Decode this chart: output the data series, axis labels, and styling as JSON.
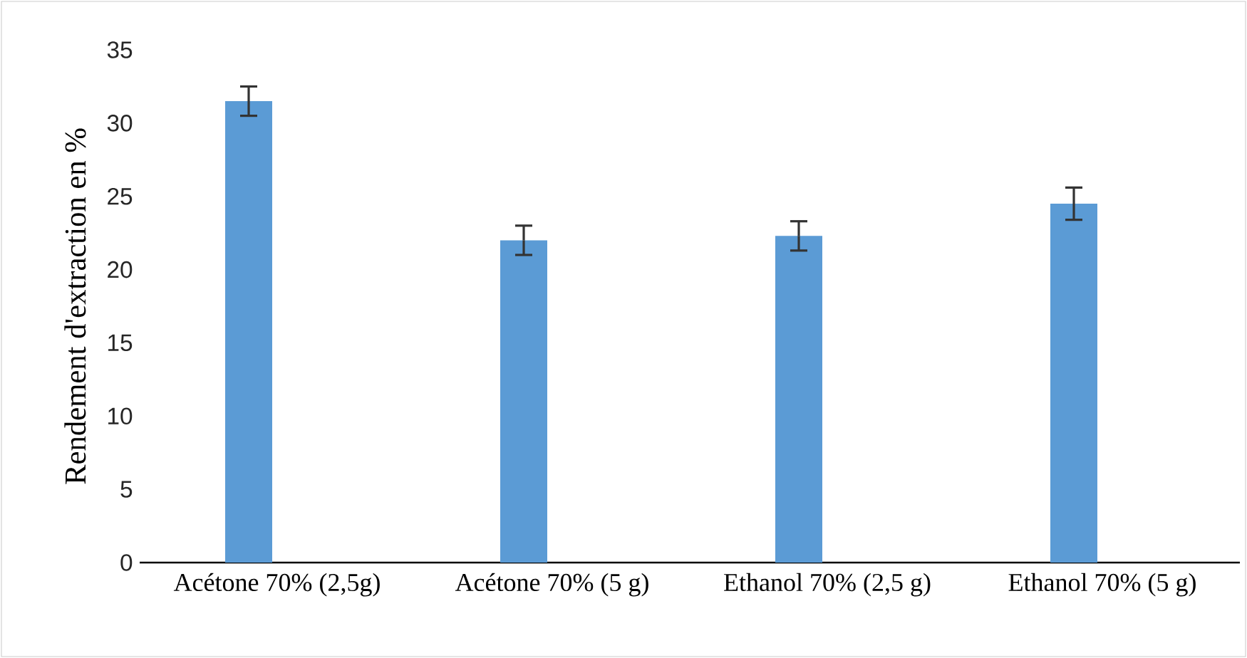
{
  "chart_data": {
    "type": "bar",
    "ylabel": "Rendement d'extraction en %",
    "categories": [
      "Acétone 70% (2,5g)",
      "Acétone 70% (5 g)",
      "Ethanol 70% (2,5 g)",
      "Ethanol 70% (5 g)"
    ],
    "values": [
      31.5,
      22.0,
      22.3,
      24.5
    ],
    "errors": [
      1.0,
      1.0,
      1.0,
      1.1
    ],
    "color": "#5b9bd5",
    "ylim": [
      0,
      35
    ],
    "yticks": [
      0,
      5,
      10,
      15,
      20,
      25,
      30,
      35
    ]
  }
}
